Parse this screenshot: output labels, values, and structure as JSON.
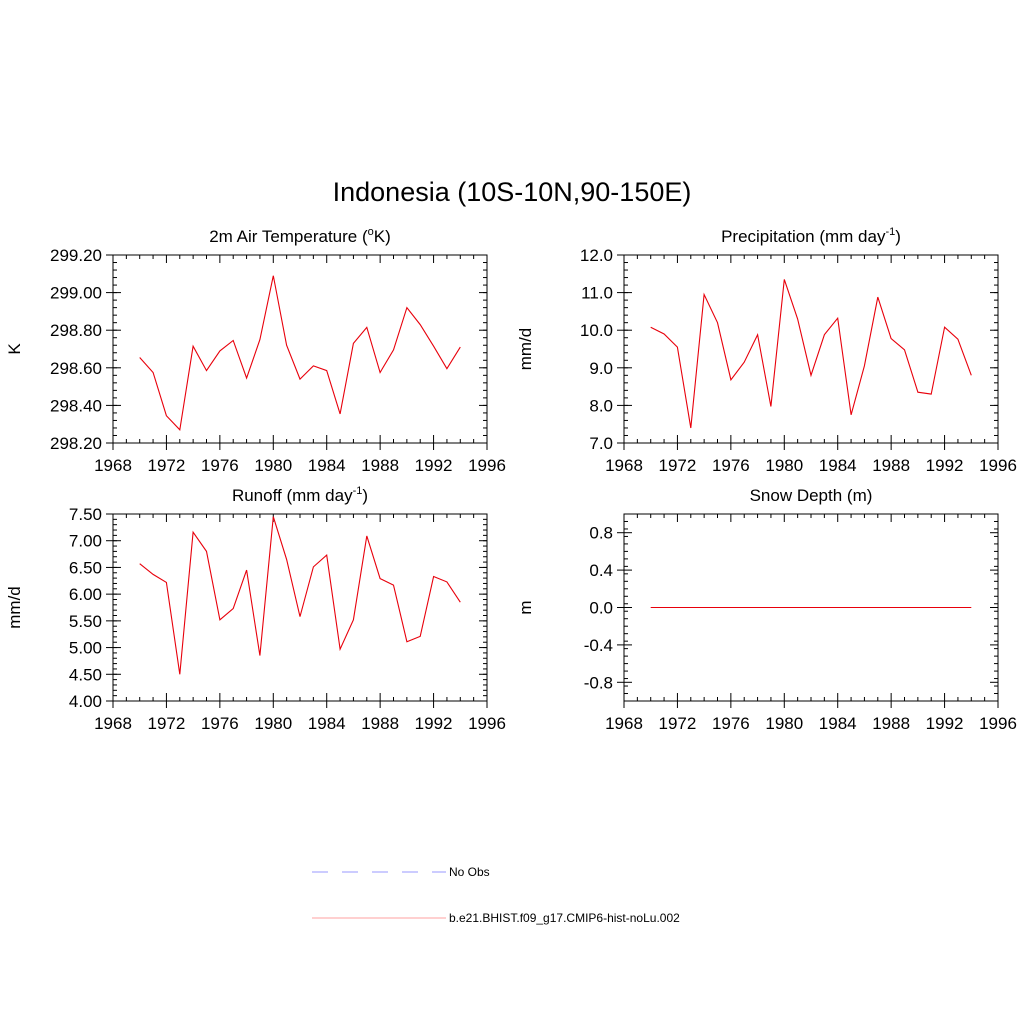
{
  "title": "Indonesia (10S-10N,90-150E)",
  "colors": {
    "model": "#e8000b",
    "obs": "#9a9aff",
    "axis": "#000000"
  },
  "legend": {
    "placement": "bottom-center",
    "items": [
      {
        "label": "No Obs",
        "style": "dashed",
        "color": "#9a9aff"
      },
      {
        "label": "b.e21.BHIST.f09_g17.CMIP6-hist-noLu.002",
        "style": "solid",
        "color": "#ffa0a0"
      }
    ]
  },
  "chart_data": [
    {
      "type": "line",
      "title": {
        "pre": "2m Air Temperature (",
        "sup": "o",
        "post": "K)"
      },
      "ylabel": "K",
      "xlim": [
        1968,
        1996
      ],
      "ylim": [
        298.2,
        299.2
      ],
      "xticks": [
        "1968",
        "1972",
        "1976",
        "1980",
        "1984",
        "1988",
        "1992",
        "1996"
      ],
      "yticks": [
        "298.20",
        "298.40",
        "298.60",
        "298.80",
        "299.00",
        "299.20"
      ],
      "x": [
        1970,
        1971,
        1972,
        1973,
        1974,
        1975,
        1976,
        1977,
        1978,
        1979,
        1980,
        1981,
        1982,
        1983,
        1984,
        1985,
        1986,
        1987,
        1988,
        1989,
        1990,
        1991,
        1992,
        1993,
        1994
      ],
      "series": [
        {
          "values": [
            298.655,
            298.575,
            298.345,
            298.27,
            298.715,
            298.585,
            298.69,
            298.745,
            298.545,
            298.75,
            299.09,
            298.72,
            298.54,
            298.61,
            298.585,
            298.355,
            298.73,
            298.815,
            298.575,
            298.695,
            298.92,
            298.83,
            298.715,
            298.595,
            298.71
          ]
        }
      ]
    },
    {
      "type": "line",
      "title": {
        "pre": "Precipitation (mm day",
        "sup": "-1",
        "post": ")"
      },
      "ylabel": "mm/d",
      "xlim": [
        1968,
        1996
      ],
      "ylim": [
        7.0,
        12.0
      ],
      "xticks": [
        "1968",
        "1972",
        "1976",
        "1980",
        "1984",
        "1988",
        "1992",
        "1996"
      ],
      "yticks": [
        "7.0",
        "8.0",
        "9.0",
        "10.0",
        "11.0",
        "12.0"
      ],
      "x": [
        1970,
        1971,
        1972,
        1973,
        1974,
        1975,
        1976,
        1977,
        1978,
        1979,
        1980,
        1981,
        1982,
        1983,
        1984,
        1985,
        1986,
        1987,
        1988,
        1989,
        1990,
        1991,
        1992,
        1993,
        1994
      ],
      "series": [
        {
          "values": [
            10.08,
            9.9,
            9.55,
            7.4,
            10.95,
            10.2,
            8.68,
            9.15,
            9.88,
            7.97,
            11.35,
            10.3,
            8.8,
            9.88,
            10.32,
            7.75,
            9.05,
            10.88,
            9.78,
            9.48,
            8.35,
            8.3,
            10.08,
            9.76,
            8.8
          ]
        }
      ]
    },
    {
      "type": "line",
      "title": {
        "pre": "Runoff (mm day",
        "sup": "-1",
        "post": ")"
      },
      "ylabel": "mm/d",
      "xlim": [
        1968,
        1996
      ],
      "ylim": [
        4.0,
        7.5
      ],
      "xticks": [
        "1968",
        "1972",
        "1976",
        "1980",
        "1984",
        "1988",
        "1992",
        "1996"
      ],
      "yticks": [
        "4.00",
        "4.50",
        "5.00",
        "5.50",
        "6.00",
        "6.50",
        "7.00",
        "7.50"
      ],
      "x": [
        1970,
        1971,
        1972,
        1973,
        1974,
        1975,
        1976,
        1977,
        1978,
        1979,
        1980,
        1981,
        1982,
        1983,
        1984,
        1985,
        1986,
        1987,
        1988,
        1989,
        1990,
        1991,
        1992,
        1993,
        1994
      ],
      "series": [
        {
          "values": [
            6.57,
            6.37,
            6.22,
            4.5,
            7.16,
            6.8,
            5.52,
            5.73,
            6.45,
            4.85,
            7.45,
            6.65,
            5.58,
            6.51,
            6.73,
            4.97,
            5.52,
            7.09,
            6.29,
            6.17,
            5.11,
            5.21,
            6.33,
            6.23,
            5.85
          ]
        }
      ]
    },
    {
      "type": "line",
      "title": {
        "pre": "Snow Depth (m)",
        "sup": "",
        "post": ""
      },
      "ylabel": "m",
      "xlim": [
        1968,
        1996
      ],
      "ylim": [
        -1.0,
        1.0
      ],
      "xticks": [
        "1968",
        "1972",
        "1976",
        "1980",
        "1984",
        "1988",
        "1992",
        "1996"
      ],
      "yticks": [
        "-0.8",
        "-0.4",
        "0.0",
        "0.4",
        "0.8"
      ],
      "x": [
        1970,
        1971,
        1972,
        1973,
        1974,
        1975,
        1976,
        1977,
        1978,
        1979,
        1980,
        1981,
        1982,
        1983,
        1984,
        1985,
        1986,
        1987,
        1988,
        1989,
        1990,
        1991,
        1992,
        1993,
        1994
      ],
      "series": [
        {
          "values": [
            0,
            0,
            0,
            0,
            0,
            0,
            0,
            0,
            0,
            0,
            0,
            0,
            0,
            0,
            0,
            0,
            0,
            0,
            0,
            0,
            0,
            0,
            0,
            0,
            0
          ]
        }
      ]
    }
  ]
}
